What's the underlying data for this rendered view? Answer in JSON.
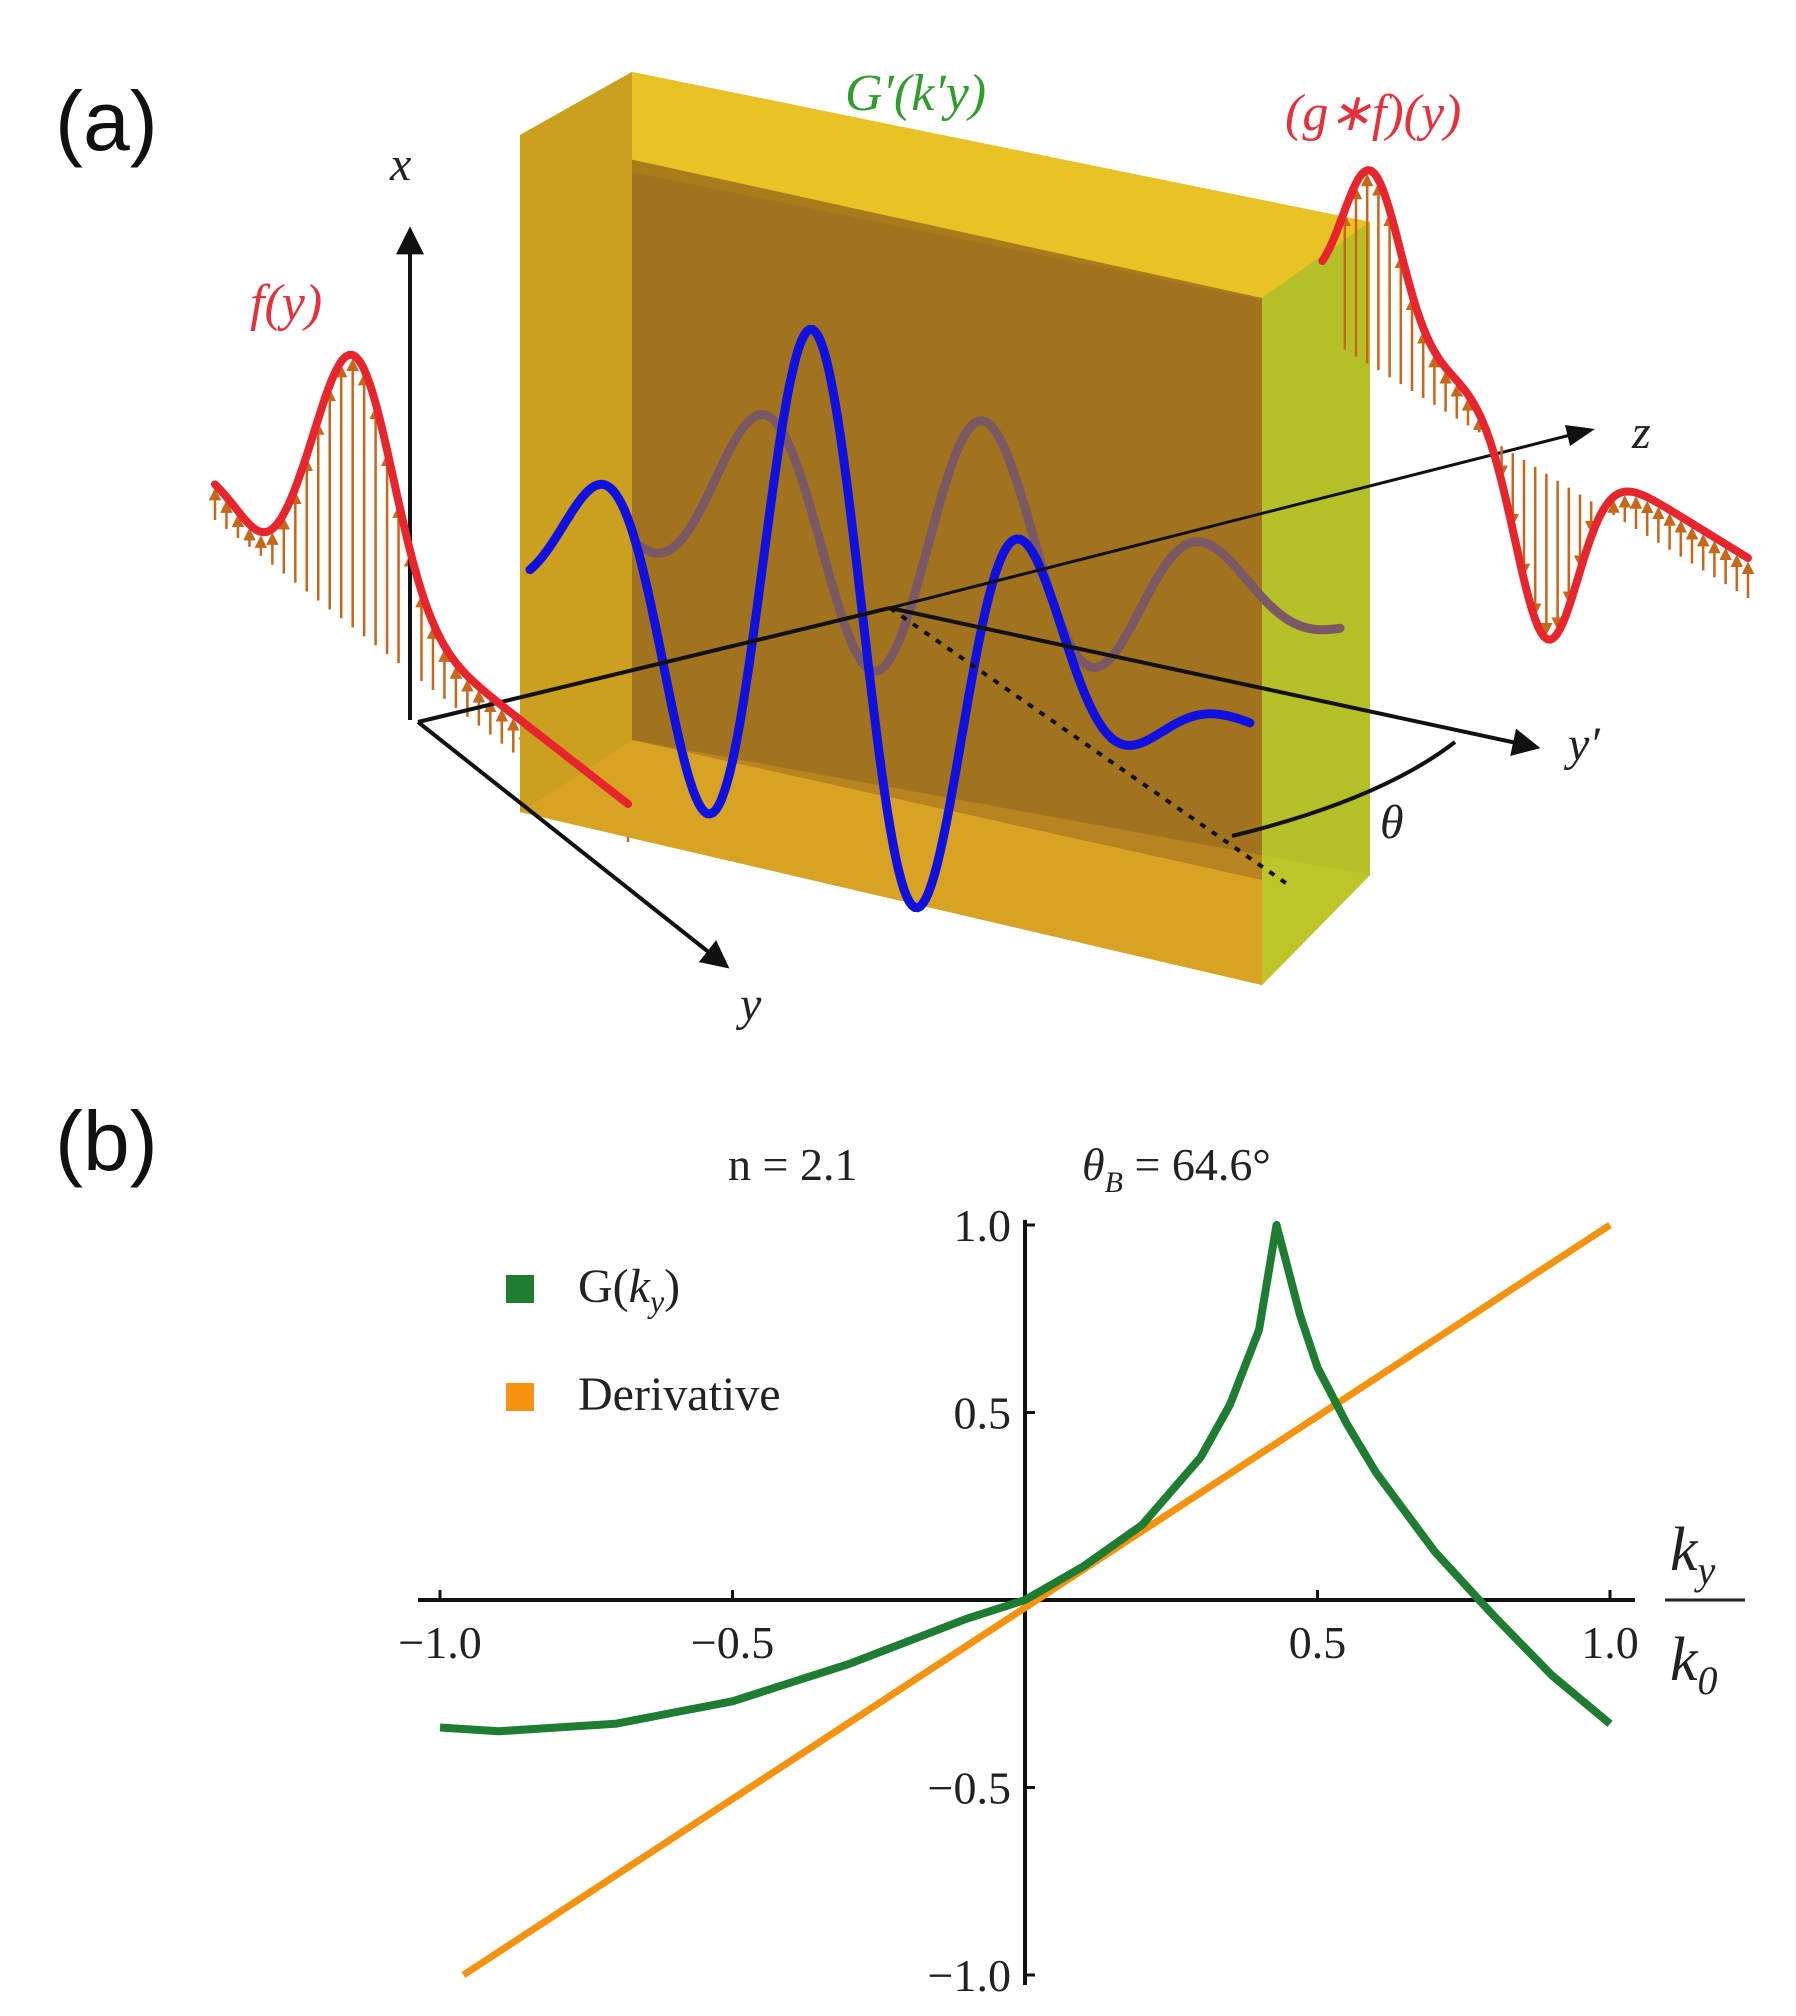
{
  "panel_a": {
    "label": "(a)",
    "axes": {
      "x": "x",
      "y": "y",
      "z": "z",
      "y_prime": "y′",
      "theta": "θ"
    },
    "labels": {
      "input": "f(y)",
      "filter": "G′(k′y)",
      "output": "(g∗f)(y)"
    }
  },
  "panel_b": {
    "label": "(b)",
    "param_n": "n = 2.1",
    "param_theta": "θB = 64.6°",
    "x_axis_label_num": "ky",
    "x_axis_label_den": "k0"
  },
  "colors": {
    "G": "#1e7d32",
    "derivative": "#f5920f",
    "red_curve": "#e8252d",
    "blue_curve": "#1010e0",
    "slab_front": "#c98f1e",
    "slab_side": "#b7cc2a"
  },
  "chart_data": {
    "type": "line",
    "title": "",
    "xlabel": "ky/k0",
    "ylabel": "",
    "xlim": [
      -1.0,
      1.0
    ],
    "ylim": [
      -1.0,
      1.0
    ],
    "xticks": [
      -1.0,
      -0.5,
      0.5,
      1.0
    ],
    "xtick_labels": [
      "−1.0",
      "−0.5",
      "0.5",
      "1.0"
    ],
    "yticks": [
      1.0,
      0.5,
      -0.5,
      -1.0
    ],
    "ytick_labels": [
      "1.0",
      "0.5",
      "−0.5",
      "−1.0"
    ],
    "series": [
      {
        "name": "G(ky)",
        "x": [
          -1.0,
          -0.9,
          -0.8,
          -0.7,
          -0.6,
          -0.5,
          -0.4,
          -0.3,
          -0.2,
          -0.1,
          0.0,
          0.1,
          0.2,
          0.3,
          0.35,
          0.4,
          0.43,
          0.47,
          0.5,
          0.55,
          0.6,
          0.7,
          0.8,
          0.9,
          1.0
        ],
        "y": [
          -0.34,
          -0.35,
          -0.34,
          -0.33,
          -0.3,
          -0.27,
          -0.22,
          -0.17,
          -0.11,
          -0.05,
          0.0,
          0.09,
          0.2,
          0.38,
          0.52,
          0.72,
          1.0,
          0.76,
          0.62,
          0.47,
          0.34,
          0.13,
          -0.04,
          -0.2,
          -0.33
        ]
      },
      {
        "name": "Derivative",
        "x": [
          -0.96,
          1.0
        ],
        "y": [
          -1.0,
          1.0
        ]
      }
    ],
    "legend": [
      "G(ky)",
      "Derivative"
    ],
    "legend_position": "top-left"
  }
}
